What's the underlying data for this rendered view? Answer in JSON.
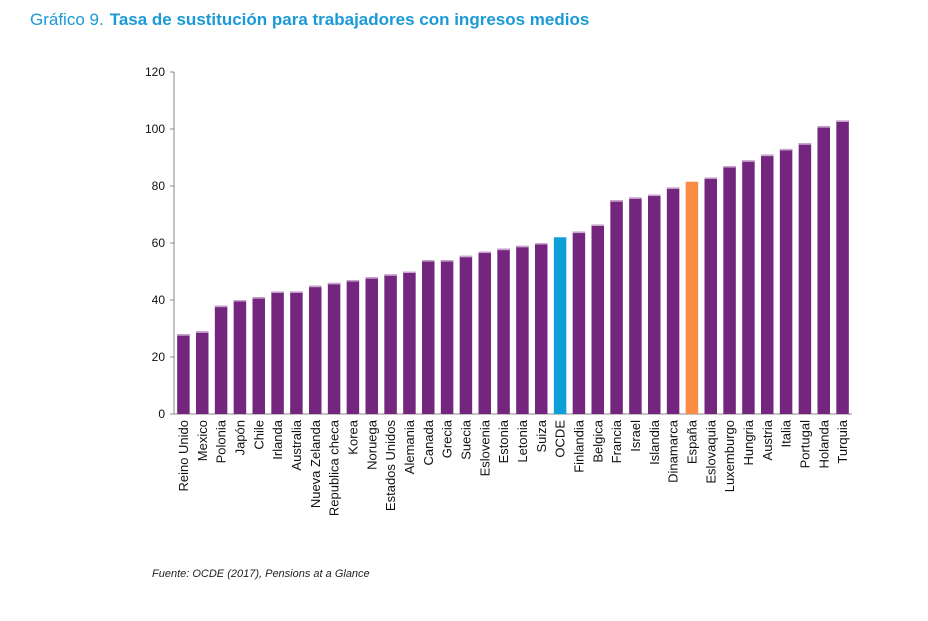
{
  "title": {
    "prefix": "Gráfico 9.",
    "main": "Tasa de sustitución para trabajadores con ingresos medios"
  },
  "source": "Fuente: OCDE (2017), Pensions at a Glance",
  "chart_data": {
    "type": "bar",
    "title": "Tasa de sustitución para trabajadores con ingresos medios",
    "xlabel": "",
    "ylabel": "",
    "ylim": [
      0,
      120
    ],
    "yticks": [
      0,
      20,
      40,
      60,
      80,
      100,
      120
    ],
    "grid": false,
    "categories": [
      "Reino Unido",
      "Mexico",
      "Polonia",
      "Japón",
      "Chile",
      "Irlanda",
      "Australia",
      "Nueva Zelanda",
      "Republica checa",
      "Korea",
      "Noruega",
      "Estados Unidos",
      "Alemania",
      "Canada",
      "Grecia",
      "Suecia",
      "Eslovenia",
      "Estonia",
      "Letonia",
      "Suiza",
      "OCDE",
      "Finlandia",
      "Belgica",
      "Francia",
      "Israel",
      "Islandia",
      "Dinamarca",
      "España",
      "Eslovaquia",
      "Luxemburgo",
      "Hungria",
      "Austria",
      "Italia",
      "Portugal",
      "Holanda",
      "Turquia"
    ],
    "values": [
      28,
      29,
      38,
      40,
      41,
      43,
      43,
      45,
      46,
      47,
      48,
      49,
      50,
      54,
      54,
      55.5,
      57,
      58,
      59,
      60,
      62,
      64,
      66.5,
      75,
      76,
      77,
      79.5,
      81.5,
      83,
      87,
      89,
      91,
      93,
      95,
      101,
      103
    ],
    "colors": {
      "default": "#74267f",
      "OCDE": "#0d9ed8",
      "España": "#fb8c46"
    }
  }
}
